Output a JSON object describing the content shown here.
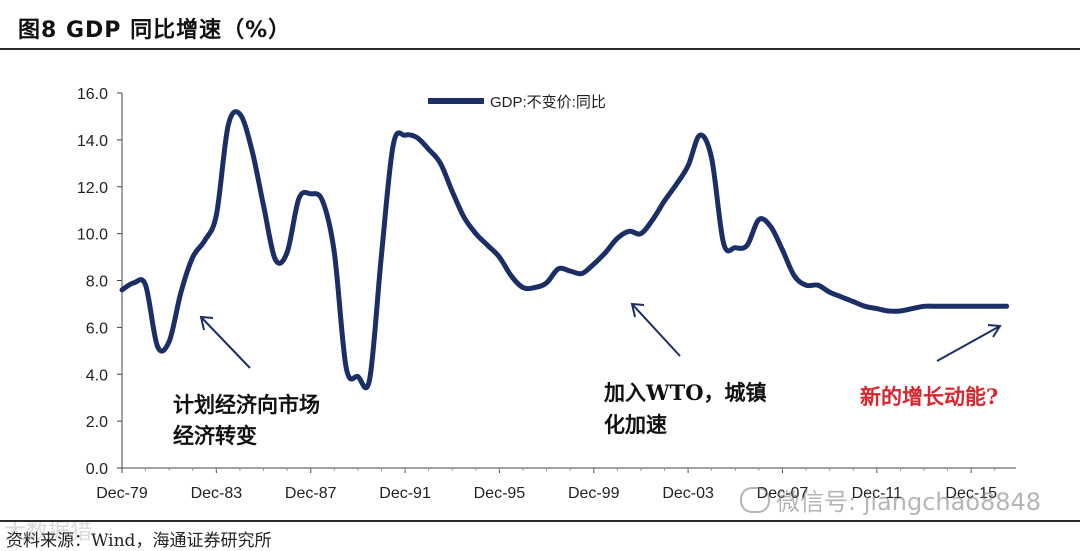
{
  "header": {
    "title": "图8  GDP 同比增速（%）"
  },
  "footer": {
    "source": "资料来源：Wind，海通证券研究所",
    "watermark_left": "大数据猎",
    "watermark_right": "微信号: jiangchao8848"
  },
  "chart_data": {
    "type": "line",
    "ylim": [
      0,
      16
    ],
    "yticks": [
      "0.0",
      "2.0",
      "4.0",
      "6.0",
      "8.0",
      "10.0",
      "12.0",
      "14.0",
      "16.0"
    ],
    "xlim": [
      1979.9,
      2017.8
    ],
    "xticks": [
      {
        "label": "Dec-79",
        "x": 1979.9
      },
      {
        "label": "Dec-83",
        "x": 1983.9
      },
      {
        "label": "Dec-87",
        "x": 1987.9
      },
      {
        "label": "Dec-91",
        "x": 1991.9
      },
      {
        "label": "Dec-95",
        "x": 1995.9
      },
      {
        "label": "Dec-99",
        "x": 1999.9
      },
      {
        "label": "Dec-03",
        "x": 2003.9
      },
      {
        "label": "Dec-07",
        "x": 2007.9
      },
      {
        "label": "Dec-11",
        "x": 2011.9
      },
      {
        "label": "Dec-15",
        "x": 2015.9
      }
    ],
    "legend": "GDP:不变价:同比",
    "series": [
      {
        "name": "GDP:不变价:同比",
        "color": "#1b2f66",
        "x": [
          1979.9,
          1980.4,
          1980.9,
          1981.4,
          1981.9,
          1982.4,
          1982.9,
          1983.4,
          1983.9,
          1984.4,
          1984.9,
          1985.4,
          1985.9,
          1986.4,
          1986.9,
          1987.4,
          1987.9,
          1988.4,
          1988.9,
          1989.4,
          1989.9,
          1990.4,
          1990.9,
          1991.4,
          1991.9,
          1992.4,
          1992.9,
          1993.4,
          1993.9,
          1994.4,
          1994.9,
          1995.4,
          1995.9,
          1996.4,
          1996.9,
          1997.4,
          1997.9,
          1998.4,
          1998.9,
          1999.4,
          1999.9,
          2000.4,
          2000.9,
          2001.4,
          2001.9,
          2002.4,
          2002.9,
          2003.4,
          2003.9,
          2004.4,
          2004.9,
          2005.4,
          2005.9,
          2006.4,
          2006.9,
          2007.4,
          2007.9,
          2008.4,
          2008.9,
          2009.4,
          2009.9,
          2010.4,
          2010.9,
          2011.4,
          2011.9,
          2012.4,
          2012.9,
          2013.4,
          2013.9,
          2014.4,
          2014.9,
          2015.4,
          2015.9,
          2016.4,
          2016.9,
          2017.4
        ],
        "values": [
          7.6,
          7.9,
          7.8,
          5.2,
          5.4,
          7.5,
          9.0,
          9.7,
          10.8,
          14.6,
          15.1,
          13.6,
          11.2,
          8.9,
          9.2,
          11.5,
          11.7,
          11.4,
          9.2,
          4.3,
          3.9,
          3.8,
          9.1,
          13.8,
          14.2,
          14.1,
          13.6,
          13.0,
          11.8,
          10.7,
          10.0,
          9.5,
          9.0,
          8.2,
          7.7,
          7.7,
          7.9,
          8.5,
          8.4,
          8.3,
          8.7,
          9.2,
          9.8,
          10.1,
          10.0,
          10.6,
          11.4,
          12.1,
          12.9,
          14.2,
          13.2,
          9.6,
          9.4,
          9.5,
          10.6,
          10.3,
          9.3,
          8.2,
          7.8,
          7.8,
          7.5,
          7.3,
          7.1,
          6.9,
          6.8,
          6.7,
          6.7,
          6.8,
          6.9,
          6.9,
          6.9,
          6.9,
          6.9,
          6.9,
          6.9,
          6.9
        ]
      }
    ],
    "annotations": [
      {
        "text_lines": [
          "计划经济向市场",
          "经济转变"
        ],
        "color": "#111111"
      },
      {
        "text_lines": [
          "加入WTO，城镇",
          "化加速"
        ],
        "color": "#111111"
      },
      {
        "text_lines": [
          "新的增长动能?"
        ],
        "color": "#d9252b"
      }
    ]
  }
}
